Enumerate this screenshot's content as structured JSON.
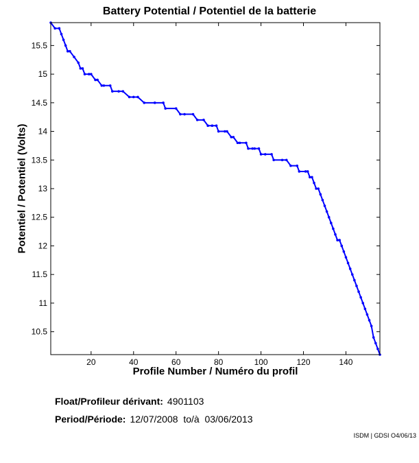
{
  "chart_data": {
    "type": "line",
    "title": "Battery Potential / Potentiel de la batterie",
    "xlabel": "Profile Number / Numéro du profil",
    "ylabel": "Potentiel / Potentiel (Volts)",
    "xlim": [
      1,
      156
    ],
    "ylim": [
      10.1,
      15.9
    ],
    "xticks": [
      20,
      40,
      60,
      80,
      100,
      120,
      140
    ],
    "yticks": [
      10.5,
      11,
      11.5,
      12,
      12.5,
      13,
      13.5,
      14,
      14.5,
      15,
      15.5
    ],
    "grid": false,
    "series_color": "#0000ff",
    "series": [
      {
        "x": [
          1,
          3,
          5,
          6,
          7,
          8,
          9,
          10,
          12,
          14,
          15,
          16,
          17,
          19,
          20,
          22,
          23,
          25,
          26,
          29,
          30,
          33,
          35,
          38,
          40,
          42,
          45,
          50,
          54,
          55,
          60,
          62,
          64,
          68,
          70,
          73,
          75,
          77,
          79,
          80,
          83,
          84,
          86,
          87,
          89,
          90,
          93,
          94,
          96,
          97,
          99,
          100,
          102,
          105,
          106,
          110,
          112,
          114,
          117,
          118,
          121,
          122,
          123,
          124,
          125,
          126,
          127,
          128,
          129,
          130,
          131,
          132,
          133,
          134,
          135,
          136,
          137,
          138,
          139,
          140,
          141,
          142,
          143,
          144,
          145,
          146,
          147,
          148,
          149,
          150,
          151,
          152,
          153,
          154,
          155,
          156
        ],
        "y": [
          15.9,
          15.8,
          15.8,
          15.7,
          15.6,
          15.5,
          15.4,
          15.4,
          15.3,
          15.2,
          15.1,
          15.1,
          15.0,
          15.0,
          15.0,
          14.9,
          14.9,
          14.8,
          14.8,
          14.8,
          14.7,
          14.7,
          14.7,
          14.6,
          14.6,
          14.6,
          14.5,
          14.5,
          14.5,
          14.4,
          14.4,
          14.3,
          14.3,
          14.3,
          14.2,
          14.2,
          14.1,
          14.1,
          14.1,
          14.0,
          14.0,
          14.0,
          13.9,
          13.9,
          13.8,
          13.8,
          13.8,
          13.7,
          13.7,
          13.7,
          13.7,
          13.6,
          13.6,
          13.6,
          13.5,
          13.5,
          13.5,
          13.4,
          13.4,
          13.3,
          13.3,
          13.3,
          13.2,
          13.2,
          13.1,
          13.0,
          13.0,
          12.9,
          12.8,
          12.7,
          12.6,
          12.5,
          12.4,
          12.3,
          12.2,
          12.1,
          12.1,
          12.0,
          11.9,
          11.8,
          11.7,
          11.6,
          11.5,
          11.4,
          11.3,
          11.2,
          11.1,
          11.0,
          10.9,
          10.8,
          10.7,
          10.6,
          10.4,
          10.3,
          10.2,
          10.1
        ]
      }
    ]
  },
  "footer": {
    "float_label": "Float/Profileur dérivant:",
    "float_value": "4901103",
    "period_label": "Period/Période:",
    "period_value": "12/07/2008  to/à  03/06/2013",
    "credit": "ISDM | GDSI O4/06/13"
  }
}
